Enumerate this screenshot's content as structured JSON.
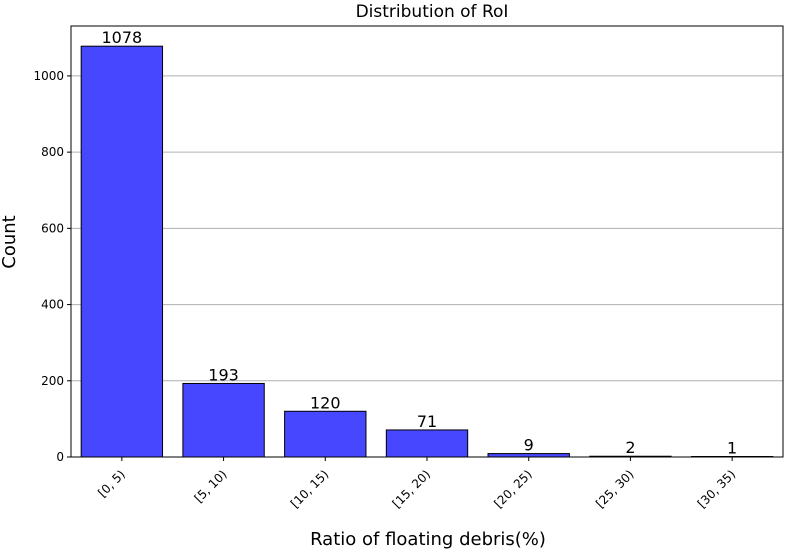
{
  "chart_data": {
    "type": "bar",
    "title": "Distribution of RoI",
    "xlabel": "Ratio of floating debris(%)",
    "ylabel": "Count",
    "categories": [
      "[0, 5)",
      "[5, 10)",
      "[10, 15)",
      "[15, 20)",
      "[20, 25)",
      "[25, 30)",
      "[30, 35)"
    ],
    "values": [
      1078,
      193,
      120,
      71,
      9,
      2,
      1
    ],
    "data_labels": [
      "1078",
      "193",
      "120",
      "71",
      "9",
      "2",
      "1"
    ],
    "ylim": [
      0,
      1131
    ],
    "yticks": [
      0,
      200,
      400,
      600,
      800,
      1000
    ],
    "ytick_labels": [
      "0",
      "200",
      "400",
      "600",
      "800",
      "1000"
    ],
    "grid": "y-axis horizontal lines",
    "bar_color": "#4747ff",
    "bar_edge_color": "#000000",
    "grid_color": "#b0b0b0"
  }
}
